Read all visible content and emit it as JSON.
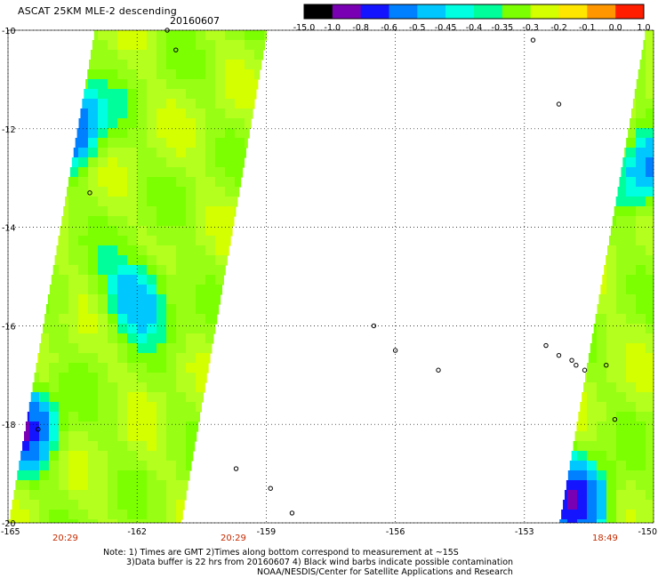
{
  "header": {
    "title": "ASCAT 25KM MLE-2 descending",
    "date": "20160607"
  },
  "colorbar": {
    "labels": [
      "-15.0",
      "-1.0",
      "-0.8",
      "-0.6",
      "-0.5",
      "-0.45",
      "-0.4",
      "-0.35",
      "-0.3",
      "-0.2",
      "-0.1",
      "0.0",
      "1.0"
    ],
    "colors": [
      "#000000",
      "#7a00b4",
      "#1414ff",
      "#0080ff",
      "#00c8ff",
      "#00ffe0",
      "#00ff9b",
      "#7cff00",
      "#d4ff00",
      "#ffe600",
      "#ff9600",
      "#ff1e00"
    ]
  },
  "chart_data": {
    "type": "heatmap",
    "title": "ASCAT 25KM MLE-2 descending",
    "date": "20160607",
    "variable": "MLE-2",
    "x_ticks": [
      "-165",
      "-162",
      "-159",
      "-156",
      "-153",
      "-150"
    ],
    "y_ticks": [
      "-10",
      "-12",
      "-14",
      "-16",
      "-18",
      "-20"
    ],
    "xlim": [
      -165,
      -150
    ],
    "ylim": [
      -20,
      -10
    ],
    "grid": true,
    "swaths": [
      {
        "lon_range_at_top": [
          -163,
          -159
        ],
        "lon_range_at_bottom": [
          -165,
          -161
        ],
        "time_label": "20:29",
        "dominant_value": -0.3
      },
      {
        "lon_range_at_top": [
          -150.2,
          -150
        ],
        "lon_range_at_bottom": [
          -152.2,
          -150
        ],
        "time_label": "18:49",
        "dominant_value": -0.3
      }
    ],
    "features": [
      {
        "label": "low MLE anomaly",
        "lon": -163.7,
        "lat": -11.8,
        "value": -0.8
      },
      {
        "label": "low MLE anomaly",
        "lon": -162.1,
        "lat": -15.3,
        "value": -0.6
      },
      {
        "label": "low MLE anomaly",
        "lon": -164.9,
        "lat": -18.0,
        "value": -1.0
      },
      {
        "label": "low MLE anomaly",
        "lon": -152.0,
        "lat": -19.5,
        "value": -1.0
      },
      {
        "label": "low MLE anomaly",
        "lon": -150.2,
        "lat": -12.8,
        "value": -0.6
      }
    ],
    "time_labels": [
      {
        "text": "20:29",
        "lon": -163.2
      },
      {
        "text": "20:29",
        "lon": -160.2
      },
      {
        "text": "18:49",
        "lon": -151.2
      }
    ]
  },
  "notes": {
    "line1": "Note: 1) Times are GMT 2)Times along bottom correspond to measurement at ~15S",
    "line2": "3)Data buffer is 22 hrs from 20160607 4) Black wind barbs indicate possible contamination",
    "line3": "NOAA/NESDIS/Center for Satellite Applications and Research"
  }
}
